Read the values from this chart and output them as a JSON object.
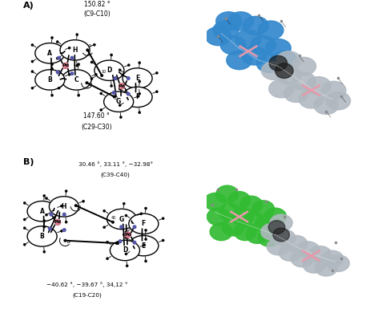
{
  "panel_A_label": "A)",
  "panel_B_label": "B)",
  "panel_A_angle1": "150.82 °",
  "panel_A_angle1_sub": "(C9-C10)",
  "panel_A_angle2": "147.60 °",
  "panel_A_angle2_sub": "(C29-C30)",
  "panel_B_angle1": "30.46 °, 33.11 °, −32.98°",
  "panel_B_angle1_sub": "(C39-C40)",
  "panel_B_angle2": "−40.62 °, −39.67 °, 34,12 °",
  "panel_B_angle2_sub": "(C19-C20)",
  "Pd_color": "#d47a8a",
  "N_color": "#5555aa",
  "background_3d": "#000000",
  "mol_color_A": "#3388cc",
  "mol_color_B": "#33bb33",
  "mol_color_silver": "#b0b8c0",
  "fig_width": 4.62,
  "fig_height": 3.9,
  "dpi": 100
}
